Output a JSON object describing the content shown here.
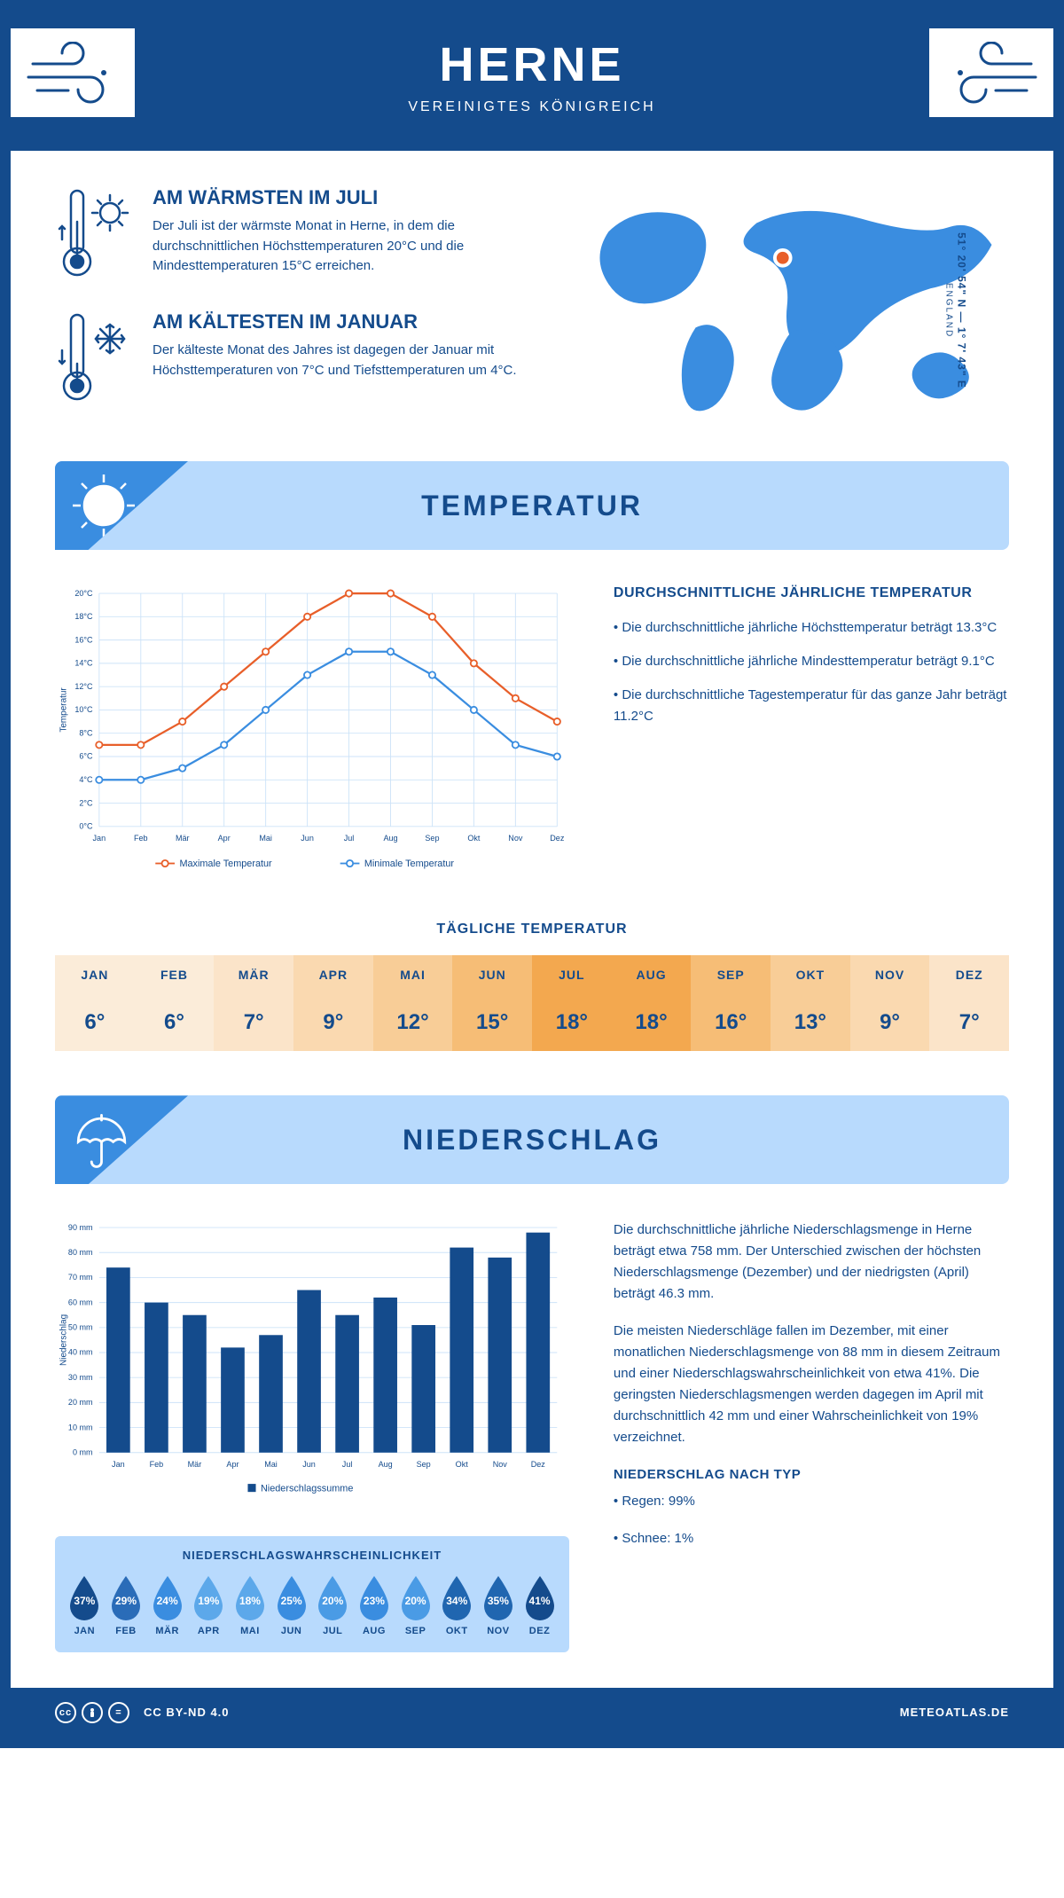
{
  "header": {
    "title": "HERNE",
    "subtitle": "VEREINIGTES KÖNIGREICH"
  },
  "coords": {
    "text": "51° 20' 54\" N — 1° 7' 43\" E",
    "region": "ENGLAND"
  },
  "facts": {
    "warm": {
      "title": "AM WÄRMSTEN IM JULI",
      "text": "Der Juli ist der wärmste Monat in Herne, in dem die durchschnittlichen Höchsttemperaturen 20°C und die Mindesttemperaturen 15°C erreichen."
    },
    "cold": {
      "title": "AM KÄLTESTEN IM JANUAR",
      "text": "Der kälteste Monat des Jahres ist dagegen der Januar mit Höchsttemperaturen von 7°C und Tiefsttemperaturen um 4°C."
    }
  },
  "sections": {
    "temperatur": "TEMPERATUR",
    "niederschlag": "NIEDERSCHLAG"
  },
  "temp_text": {
    "heading": "DURCHSCHNITTLICHE JÄHRLICHE TEMPERATUR",
    "bullets": [
      "• Die durchschnittliche jährliche Höchsttemperatur beträgt 13.3°C",
      "• Die durchschnittliche jährliche Mindesttemperatur beträgt 9.1°C",
      "• Die durchschnittliche Tagestemperatur für das ganze Jahr beträgt 11.2°C"
    ]
  },
  "temp_chart": {
    "months": [
      "Jan",
      "Feb",
      "Mär",
      "Apr",
      "Mai",
      "Jun",
      "Jul",
      "Aug",
      "Sep",
      "Okt",
      "Nov",
      "Dez"
    ],
    "max": [
      7,
      7,
      9,
      12,
      15,
      18,
      20,
      20,
      18,
      14,
      11,
      9
    ],
    "min": [
      4,
      4,
      5,
      7,
      10,
      13,
      15,
      15,
      13,
      10,
      7,
      6
    ],
    "ylim": [
      0,
      20
    ],
    "ytick_step": 2,
    "ylabel": "Temperatur",
    "legend_max": "Maximale Temperatur",
    "legend_min": "Minimale Temperatur",
    "colors": {
      "max": "#e85f2a",
      "min": "#3a8de0",
      "grid": "#cde3f8"
    }
  },
  "daily_temp": {
    "title": "TÄGLICHE TEMPERATUR",
    "months": [
      "JAN",
      "FEB",
      "MÄR",
      "APR",
      "MAI",
      "JUN",
      "JUL",
      "AUG",
      "SEP",
      "OKT",
      "NOV",
      "DEZ"
    ],
    "values": [
      "6°",
      "6°",
      "7°",
      "9°",
      "12°",
      "15°",
      "18°",
      "18°",
      "16°",
      "13°",
      "9°",
      "7°"
    ],
    "colors": [
      "#fbecd9",
      "#fbecd9",
      "#fbe4c9",
      "#fad9b0",
      "#f8cd97",
      "#f6bd76",
      "#f3a84f",
      "#f3a84f",
      "#f6bd76",
      "#f8cd97",
      "#fad9b0",
      "#fbe4c9"
    ]
  },
  "precip_chart": {
    "months": [
      "Jan",
      "Feb",
      "Mär",
      "Apr",
      "Mai",
      "Jun",
      "Jul",
      "Aug",
      "Sep",
      "Okt",
      "Nov",
      "Dez"
    ],
    "values": [
      74,
      60,
      55,
      42,
      47,
      65,
      55,
      62,
      51,
      82,
      78,
      88
    ],
    "ylim": [
      0,
      90
    ],
    "ytick_step": 10,
    "ylabel": "Niederschlag",
    "legend": "Niederschlagssumme",
    "bar_color": "#144b8c",
    "grid_color": "#cde3f8"
  },
  "precip_text": {
    "p1": "Die durchschnittliche jährliche Niederschlagsmenge in Herne beträgt etwa 758 mm. Der Unterschied zwischen der höchsten Niederschlagsmenge (Dezember) und der niedrigsten (April) beträgt 46.3 mm.",
    "p2": "Die meisten Niederschläge fallen im Dezember, mit einer monatlichen Niederschlagsmenge von 88 mm in diesem Zeitraum und einer Niederschlagswahrscheinlichkeit von etwa 41%. Die geringsten Niederschlagsmengen werden dagegen im April mit durchschnittlich 42 mm und einer Wahrscheinlichkeit von 19% verzeichnet.",
    "type_heading": "NIEDERSCHLAG NACH TYP",
    "type_bullets": [
      "• Regen: 99%",
      "• Schnee: 1%"
    ]
  },
  "precip_prob": {
    "title": "NIEDERSCHLAGSWAHRSCHEINLICHKEIT",
    "months": [
      "JAN",
      "FEB",
      "MÄR",
      "APR",
      "MAI",
      "JUN",
      "JUL",
      "AUG",
      "SEP",
      "OKT",
      "NOV",
      "DEZ"
    ],
    "values": [
      "37%",
      "29%",
      "24%",
      "19%",
      "18%",
      "25%",
      "20%",
      "23%",
      "20%",
      "34%",
      "35%",
      "41%"
    ],
    "drop_colors": [
      "#144b8c",
      "#2a6cb8",
      "#3a8de0",
      "#5ca8ea",
      "#5ca8ea",
      "#3a8de0",
      "#4a9be5",
      "#3a8de0",
      "#4a9be5",
      "#2066b0",
      "#2066b0",
      "#144b8c"
    ]
  },
  "footer": {
    "license": "CC BY-ND 4.0",
    "site": "METEOATLAS.DE"
  }
}
